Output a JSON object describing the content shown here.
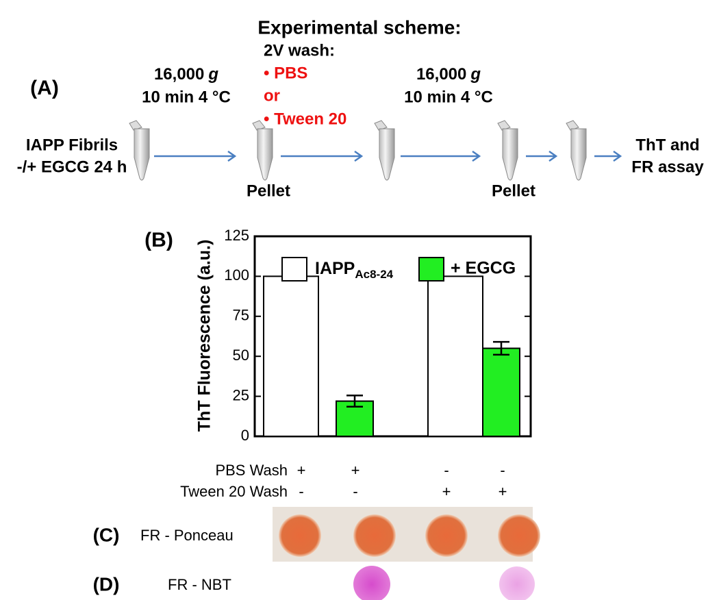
{
  "title": "Experimental scheme:",
  "panel_a": {
    "label": "(A)",
    "start": [
      "IAPP Fibrils",
      "-/+ EGCG 24 h"
    ],
    "spin_1": {
      "speed": "16,000",
      "unit": "g",
      "conditions": "10 min 4 °C"
    },
    "wash": {
      "heading": "2V wash:",
      "options": [
        "• PBS",
        "or",
        "• Tween 20"
      ]
    },
    "spin_2": {
      "speed": "16,000",
      "unit": "g",
      "conditions": "10 min 4 °C"
    },
    "pellet_labels": [
      "Pellet",
      "Pellet"
    ],
    "end": [
      "ThT and",
      "FR assay"
    ]
  },
  "chart_data": {
    "type": "bar",
    "panel_label": "(B)",
    "y_label": "ThT Fluorescence (a.u.)",
    "ylim": [
      0,
      125
    ],
    "yticks": [
      0,
      25,
      50,
      75,
      100,
      125
    ],
    "grid": false,
    "series": [
      {
        "name": "IAPP",
        "name_subscript": "Ac8-24",
        "color": "#ffffff",
        "values": [
          100,
          null,
          100,
          null
        ]
      },
      {
        "name": "+ EGCG",
        "color": "#22ee22",
        "values": [
          null,
          22,
          null,
          55
        ],
        "errors": [
          null,
          3.5,
          null,
          4
        ]
      }
    ],
    "conditions": [
      {
        "label": "PBS Wash",
        "values": [
          "+",
          "+",
          "-",
          "-"
        ]
      },
      {
        "label": "Tween 20 Wash",
        "values": [
          "-",
          "-",
          "+",
          "+"
        ]
      }
    ]
  },
  "panel_c": {
    "label": "(C)",
    "text": "FR - Ponceau"
  },
  "panel_d": {
    "label": "(D)",
    "text": "FR - NBT"
  }
}
